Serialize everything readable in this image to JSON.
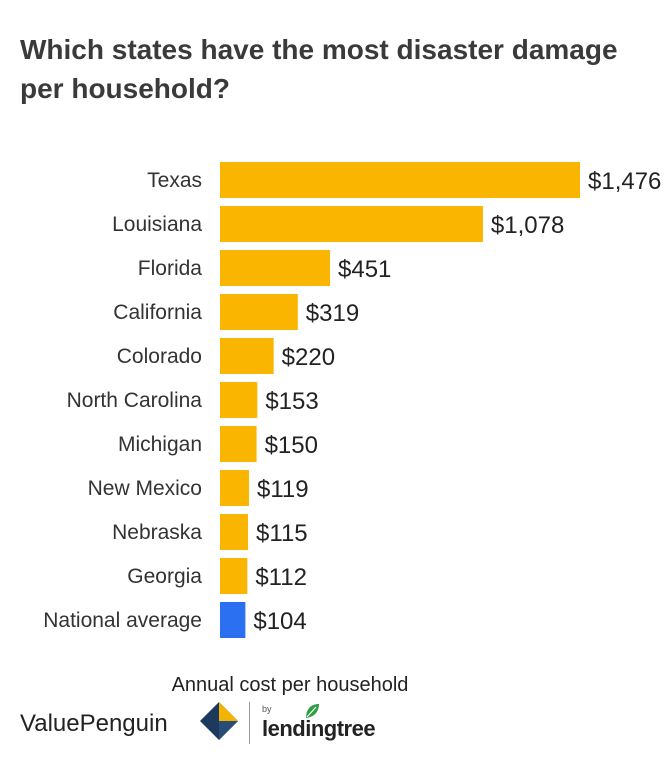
{
  "title": "Which states have the most disaster damage per household?",
  "chart_data": {
    "type": "bar",
    "orientation": "horizontal",
    "title": "Which states have the most disaster damage per household?",
    "xlabel": "Annual cost per household",
    "categories": [
      "Texas",
      "Louisiana",
      "Florida",
      "California",
      "Colorado",
      "North Carolina",
      "Michigan",
      "New Mexico",
      "Nebraska",
      "Georgia",
      "National average"
    ],
    "values": [
      1476,
      1078,
      451,
      319,
      220,
      153,
      150,
      119,
      115,
      112,
      104
    ],
    "value_labels": [
      "$1,476",
      "$1,078",
      "$451",
      "$319",
      "$220",
      "$153",
      "$150",
      "$119",
      "$115",
      "$112",
      "$104"
    ],
    "bar_colors": [
      "#f9b500",
      "#f9b500",
      "#f9b500",
      "#f9b500",
      "#f9b500",
      "#f9b500",
      "#f9b500",
      "#f9b500",
      "#f9b500",
      "#f9b500",
      "#2a70f0"
    ],
    "xlim": [
      0,
      1476
    ],
    "grid": false,
    "legend": "none"
  },
  "footer": {
    "brand": "ValuePenguin",
    "partner_by": "by",
    "partner": "lendingtree"
  },
  "icons": [
    "valuepenguin-logo-icon",
    "lendingtree-leaf-icon"
  ]
}
